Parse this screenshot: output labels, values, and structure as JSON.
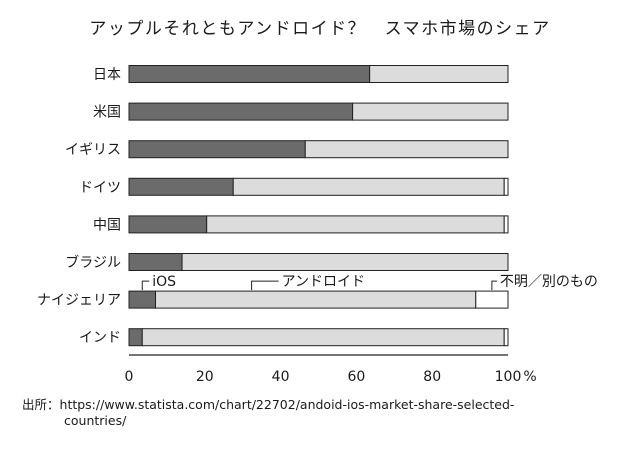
{
  "chart_data": {
    "type": "bar",
    "stacked": true,
    "orientation": "horizontal",
    "title": "アップルそれともアンドロイド？　スマホ市場のシェア",
    "categories": [
      "日本",
      "米国",
      "イギリス",
      "ドイツ",
      "中国",
      "ブラジル",
      "ナイジェリア",
      "インド"
    ],
    "series": [
      {
        "name": "iOS",
        "values": [
          63.5,
          59,
          46.5,
          27.5,
          20.5,
          14,
          7,
          3.5
        ],
        "color": "#6b6b6b"
      },
      {
        "name": "アンドロイド",
        "values": [
          36.5,
          41,
          53.5,
          71.5,
          78.5,
          86,
          84.5,
          95.5
        ],
        "color": "#dcdcdc"
      },
      {
        "name": "不明／別のもの",
        "values": [
          0,
          0,
          0,
          1,
          1,
          0,
          8.5,
          1
        ],
        "color": "#ffffff"
      }
    ],
    "xlim": [
      0,
      100
    ],
    "xticks": [
      "0",
      "20",
      "40",
      "60",
      "80",
      "100"
    ],
    "xunit": "%",
    "grid": false
  },
  "source": {
    "label": "出所：",
    "url_line1": "https://www.statista.com/chart/22702/andoid-ios-market-share-selected-",
    "url_line2": "countries/"
  }
}
